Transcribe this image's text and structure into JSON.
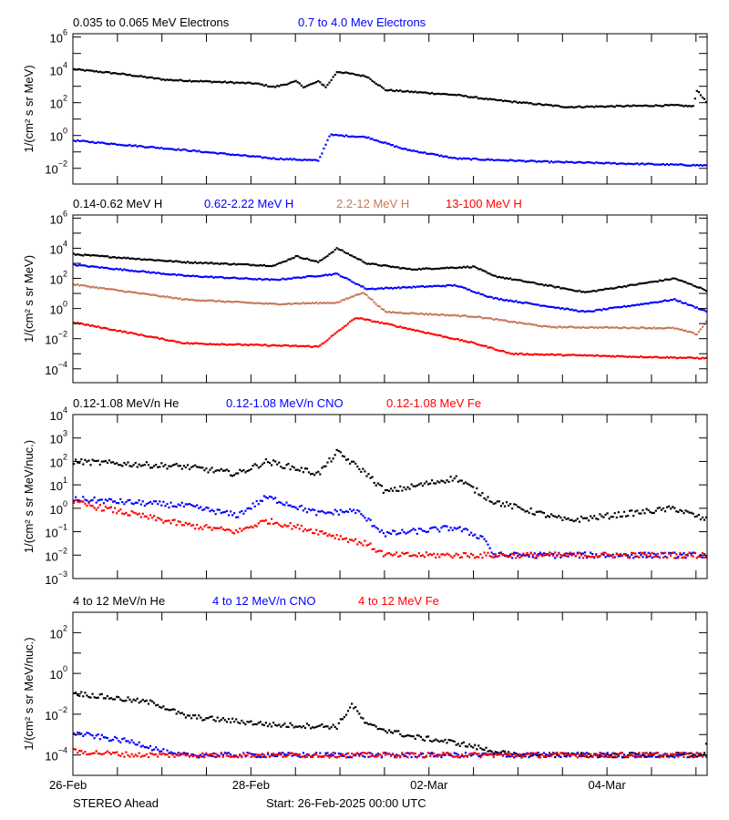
{
  "footer": {
    "spacecraft": "STEREO Ahead",
    "start": "Start: 26-Feb-2025 00:00 UTC"
  },
  "xaxis": {
    "xlim": [
      "2025-02-26T00:00",
      "2025-03-05T03:00"
    ],
    "tick_labels": [
      {
        "date": "2025-02-26T00:00",
        "label": "26-Feb"
      },
      {
        "date": "2025-02-28T00:00",
        "label": "28-Feb"
      },
      {
        "date": "2025-03-02T00:00",
        "label": "02-Mar"
      },
      {
        "date": "2025-03-04T00:00",
        "label": "04-Mar"
      }
    ]
  },
  "chart_data": [
    {
      "type": "scatter",
      "ylabel": "1/(cm² s sr MeV)",
      "yscale": "log",
      "ylim": [
        0.0011,
        1600000.0
      ],
      "yticks_labeled": [
        0.01,
        1,
        100.0,
        10000.0,
        1000000.0
      ],
      "series": [
        {
          "name": "0.035 to 0.065 MeV Electrons",
          "color": "#000000",
          "points": [
            [
              "2025-02-26T00:00",
              11000.0
            ],
            [
              "2025-02-26T12:00",
              6000.0
            ],
            [
              "2025-02-27T01:00",
              2500.0
            ],
            [
              "2025-02-28T01:00",
              1500.0
            ],
            [
              "2025-02-28T06:00",
              900
            ],
            [
              "2025-02-28T12:00",
              2000.0
            ],
            [
              "2025-02-28T14:00",
              900
            ],
            [
              "2025-02-28T18:00",
              2000.0
            ],
            [
              "2025-02-28T20:00",
              900
            ],
            [
              "2025-02-28T23:00",
              8000.0
            ],
            [
              "2025-03-01T07:00",
              4000.0
            ],
            [
              "2025-03-01T12:00",
              600
            ],
            [
              "2025-03-02T07:00",
              300
            ],
            [
              "2025-03-02T17:00",
              150
            ],
            [
              "2025-03-03T13:00",
              55
            ],
            [
              "2025-03-04T18:00",
              70
            ],
            [
              "2025-03-04T23:00",
              60
            ],
            [
              "2025-03-05T00:00",
              600
            ],
            [
              "2025-03-05T03:00",
              80
            ]
          ]
        },
        {
          "name": "0.7 to 4.0 Mev Electrons",
          "color": "#0000ff",
          "points": [
            [
              "2025-02-26T00:00",
              0.5
            ],
            [
              "2025-02-27T06:00",
              0.13
            ],
            [
              "2025-02-28T06:00",
              0.04
            ],
            [
              "2025-02-28T18:00",
              0.03
            ],
            [
              "2025-02-28T21:00",
              1.1
            ],
            [
              "2025-03-01T07:00",
              0.8
            ],
            [
              "2025-03-01T17:00",
              0.15
            ],
            [
              "2025-03-02T07:00",
              0.04
            ],
            [
              "2025-03-03T08:00",
              0.025
            ],
            [
              "2025-03-05T03:00",
              0.015
            ]
          ]
        }
      ]
    },
    {
      "type": "scatter",
      "ylabel": "1/(cm² s sr MeV)",
      "yscale": "log",
      "ylim": [
        1.2e-05,
        1600000.0
      ],
      "yticks_labeled": [
        0.0001,
        0.01,
        1,
        100.0,
        10000.0,
        1000000.0
      ],
      "series": [
        {
          "name": "0.14-0.62 MeV H",
          "color": "#000000",
          "points": [
            [
              "2025-02-26T00:00",
              4000.0
            ],
            [
              "2025-02-27T06:00",
              1200.0
            ],
            [
              "2025-02-28T06:00",
              700
            ],
            [
              "2025-02-28T12:00",
              3000.0
            ],
            [
              "2025-02-28T18:00",
              1200.0
            ],
            [
              "2025-02-28T23:00",
              10000.0
            ],
            [
              "2025-03-01T07:00",
              1000.0
            ],
            [
              "2025-03-01T19:00",
              400
            ],
            [
              "2025-03-02T12:00",
              600
            ],
            [
              "2025-03-02T17:00",
              150
            ],
            [
              "2025-03-03T18:00",
              12
            ],
            [
              "2025-03-04T18:00",
              100
            ],
            [
              "2025-03-05T03:00",
              15
            ]
          ]
        },
        {
          "name": "0.62-2.22 MeV H",
          "color": "#0000ff",
          "points": [
            [
              "2025-02-26T00:00",
              800
            ],
            [
              "2025-02-27T06:00",
              150
            ],
            [
              "2025-02-28T06:00",
              80
            ],
            [
              "2025-02-28T23:00",
              200
            ],
            [
              "2025-03-01T07:00",
              20
            ],
            [
              "2025-03-02T07:00",
              35
            ],
            [
              "2025-03-02T17:00",
              5
            ],
            [
              "2025-03-03T18:00",
              0.6
            ],
            [
              "2025-03-04T18:00",
              4
            ],
            [
              "2025-03-05T03:00",
              0.6
            ]
          ]
        },
        {
          "name": "2.2-12 MeV H",
          "color": "#c8785a",
          "points": [
            [
              "2025-02-26T00:00",
              40
            ],
            [
              "2025-02-27T06:00",
              4
            ],
            [
              "2025-02-28T06:00",
              2
            ],
            [
              "2025-02-28T23:00",
              2.5
            ],
            [
              "2025-03-01T06:00",
              12
            ],
            [
              "2025-03-01T12:00",
              0.6
            ],
            [
              "2025-03-02T12:00",
              0.3
            ],
            [
              "2025-03-03T08:00",
              0.06
            ],
            [
              "2025-03-04T18:00",
              0.05
            ],
            [
              "2025-03-05T00:00",
              0.02
            ],
            [
              "2025-03-05T03:00",
              0.2
            ]
          ]
        },
        {
          "name": "13-100 MeV H",
          "color": "#ff0000",
          "points": [
            [
              "2025-02-26T00:00",
              0.12
            ],
            [
              "2025-02-27T06:00",
              0.005
            ],
            [
              "2025-02-28T18:00",
              0.003
            ],
            [
              "2025-03-01T04:00",
              0.25
            ],
            [
              "2025-03-01T12:00",
              0.1
            ],
            [
              "2025-03-02T12:00",
              0.005
            ],
            [
              "2025-03-02T22:00",
              0.001
            ],
            [
              "2025-03-05T03:00",
              0.0005
            ]
          ]
        }
      ]
    },
    {
      "type": "scatter",
      "ylabel": "1/(cm² s sr MeV/nuc.)",
      "yscale": "log",
      "ylim": [
        0.001,
        10000.0
      ],
      "yticks_labeled": [
        0.001,
        0.01,
        0.1,
        1,
        10,
        100,
        1000.0,
        10000.0
      ],
      "series": [
        {
          "name": "0.12-1.08 MeV/n He",
          "color": "#000000",
          "points": [
            [
              "2025-02-26T00:00",
              100
            ],
            [
              "2025-02-27T06:00",
              60
            ],
            [
              "2025-02-27T20:00",
              30
            ],
            [
              "2025-02-28T04:00",
              100
            ],
            [
              "2025-02-28T18:00",
              30
            ],
            [
              "2025-02-28T23:00",
              250
            ],
            [
              "2025-03-01T07:00",
              30
            ],
            [
              "2025-03-01T12:00",
              5
            ],
            [
              "2025-03-02T07:00",
              20
            ],
            [
              "2025-03-02T17:00",
              2
            ],
            [
              "2025-03-03T13:00",
              0.3
            ],
            [
              "2025-03-04T18:00",
              1
            ],
            [
              "2025-03-05T03:00",
              0.3
            ]
          ]
        },
        {
          "name": "0.12-1.08 MeV/n CNO",
          "color": "#0000ff",
          "points": [
            [
              "2025-02-26T00:00",
              2.5
            ],
            [
              "2025-02-27T06:00",
              1.3
            ],
            [
              "2025-02-27T20:00",
              0.5
            ],
            [
              "2025-02-28T04:00",
              3
            ],
            [
              "2025-02-28T18:00",
              0.6
            ],
            [
              "2025-03-01T04:00",
              0.8
            ],
            [
              "2025-03-01T12:00",
              0.08
            ],
            [
              "2025-03-02T07:00",
              0.15
            ],
            [
              "2025-03-02T15:00",
              0.05
            ],
            [
              "2025-03-02T17:00",
              0.01
            ],
            [
              "2025-03-05T03:00",
              0.01
            ]
          ]
        },
        {
          "name": "0.12-1.08 MeV Fe",
          "color": "#ff0000",
          "points": [
            [
              "2025-02-26T00:00",
              1.8
            ],
            [
              "2025-02-27T06:00",
              0.2
            ],
            [
              "2025-02-27T20:00",
              0.1
            ],
            [
              "2025-02-28T04:00",
              0.3
            ],
            [
              "2025-02-28T18:00",
              0.1
            ],
            [
              "2025-03-01T07:00",
              0.03
            ],
            [
              "2025-03-01T12:00",
              0.01
            ],
            [
              "2025-03-05T03:00",
              0.01
            ]
          ]
        }
      ]
    },
    {
      "type": "scatter",
      "ylabel": "1/(cm² s sr MeV/nuc.)",
      "yscale": "log",
      "ylim": [
        1e-05,
        1000.0
      ],
      "yticks_labeled": [
        0.0001,
        0.01,
        1,
        100.0
      ],
      "series": [
        {
          "name": "4 to 12 MeV/n He",
          "color": "#000000",
          "points": [
            [
              "2025-02-26T00:00",
              0.11
            ],
            [
              "2025-02-26T22:00",
              0.035
            ],
            [
              "2025-02-27T06:00",
              0.008
            ],
            [
              "2025-02-28T06:00",
              0.003
            ],
            [
              "2025-02-28T23:00",
              0.0025
            ],
            [
              "2025-03-01T03:00",
              0.03
            ],
            [
              "2025-03-01T07:00",
              0.003
            ],
            [
              "2025-03-01T19:00",
              0.0008
            ],
            [
              "2025-03-02T07:00",
              0.0004
            ],
            [
              "2025-03-02T22:00",
              0.0001
            ],
            [
              "2025-03-05T02:00",
              0.0001
            ],
            [
              "2025-03-05T03:00",
              0.002
            ]
          ]
        },
        {
          "name": "4 to 12 MeV/n CNO",
          "color": "#0000ff",
          "points": [
            [
              "2025-02-26T00:00",
              0.0012
            ],
            [
              "2025-02-26T17:00",
              0.0004
            ],
            [
              "2025-02-27T03:00",
              0.0001
            ],
            [
              "2025-03-02T22:00",
              0.0001
            ],
            [
              "2025-03-05T03:00",
              0.0001
            ]
          ]
        },
        {
          "name": "4 to 12 MeV Fe",
          "color": "#ff0000",
          "points": [
            [
              "2025-02-26T00:00",
              0.00015
            ],
            [
              "2025-02-26T17:00",
              0.0001
            ],
            [
              "2025-03-01T19:00",
              0.0001
            ],
            [
              "2025-03-05T03:00",
              0.0001
            ]
          ]
        }
      ]
    }
  ]
}
